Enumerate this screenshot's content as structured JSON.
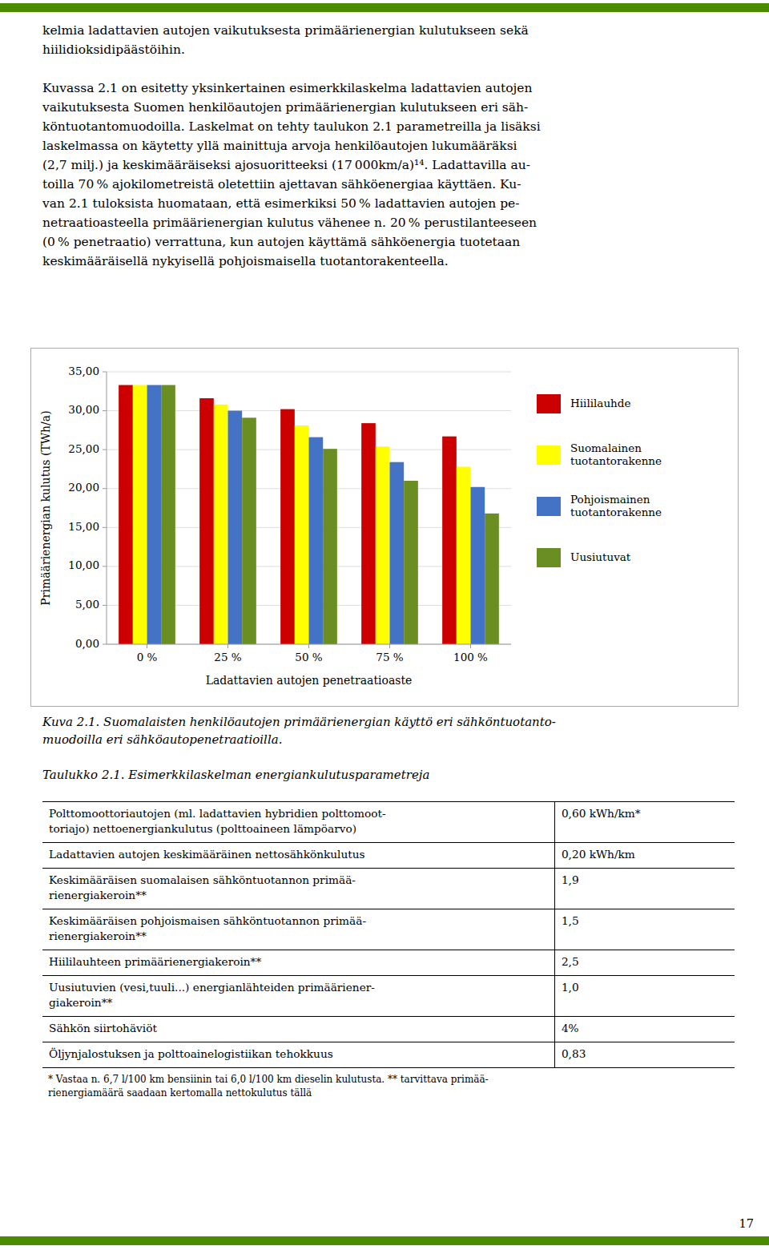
{
  "page": {
    "body_paragraphs": [
      [
        "kelmia ladattavien autojen vaikutuksesta primäärienergian kulutukseen sekä",
        "hiilidioksidipäästöihin."
      ],
      [
        "Kuvassa 2.1 on esitetty yksinkertainen esimerkkilaskelma ladattavien autojen",
        "vaikutuksesta Suomen henkilöautojen primäärienergian kulutukseen eri säh-",
        "köntuotantomuodoilla. Laskelmat on tehty taulukon 2.1 parametreilla ja lisäksi",
        "laskelmassa on käytetty yllä mainittuja arvoja henkilöautojen lukumääräksi",
        "(2,7 milj.) ja keskimääräiseksi ajosuoritteeksi (17 000km/a)¹⁴. Ladattavilla au-",
        "toilla 70 % ajokilometreistä oletettiin ajettavan sähköenergiaa käyttäen. Ku-",
        "van 2.1 tuloksista huomataan, että esimerkiksi 50 % ladattavien autojen pe-",
        "netraatioasteella primäärienergian kulutus vähenee n. 20 % perustilanteeseen",
        "(0 % penetraatio) verrattuna, kun autojen käyttämä sähköenergia tuotetaan",
        "keskimääräisellä nykyisellä pohjoismaisella tuotantorakenteella."
      ]
    ],
    "figure_caption": "Kuva 2.1. Suomalaisten henkilöautojen primäärienergian käyttö eri sähköntuotanto-\nmuodoilla eri sähköautopenetraatioilla.",
    "table_title": "Taulukko 2.1. Esimerkkilaskelman energiankulutusparametreja",
    "table_rows": [
      [
        "Polttomoottoriautojen (ml. ladattavien hybridien polttomoot-\ntoriajo) nettoenergiankulutus (polttoaineen lämpöarvo)",
        "0,60 kWh/km*"
      ],
      [
        "Ladattavien autojen keskimääräinen nettosähkönkulutus",
        "0,20 kWh/km"
      ],
      [
        "Keskimääräisen suomalaisen sähköntuotannon primää-\nrienergiakeroin**",
        "1,9"
      ],
      [
        "Keskimääräisen pohjoismaisen sähköntuotannon primää-\nrienergiakeroin**",
        "1,5"
      ],
      [
        "Hiililauhteen primäärienergiakeroin**",
        "2,5"
      ],
      [
        "Uusiutuvien (vesi,tuuli...) energianlähteiden primääriener-\ngiakeroin**",
        "1,0"
      ],
      [
        "Sähkön siirtohäviöt",
        "4%"
      ],
      [
        "Öljynjalostuksen ja polttoainelogistiikan tehokkuus",
        "0,83"
      ]
    ],
    "table_footnote": "* Vastaa n. 6,7 l/100 km bensiinin tai 6,0 l/100 km dieselin kulutusta. ** tarvittava primää-\nrienergiamäärä saadaan kertomalla nettokulutus tällä",
    "page_number": "17"
  },
  "chart_data": {
    "type": "bar",
    "categories": [
      "0 %",
      "25 %",
      "50 %",
      "75 %",
      "100 %"
    ],
    "series": [
      {
        "name": "Hiililauhde",
        "color": "#CC0000",
        "values": [
          33.3,
          31.6,
          30.2,
          28.4,
          26.7
        ]
      },
      {
        "name": "Suomalainen\ntuotantorakenne",
        "color": "#FFFF00",
        "values": [
          33.3,
          30.8,
          28.1,
          25.4,
          22.8
        ]
      },
      {
        "name": "Pohjoismainen\ntuotantorakenne",
        "color": "#4472C4",
        "values": [
          33.3,
          30.0,
          26.6,
          23.4,
          20.2
        ]
      },
      {
        "name": "Uusiutuvat",
        "color": "#6B8E23",
        "values": [
          33.3,
          29.1,
          25.1,
          21.0,
          16.8
        ]
      }
    ],
    "xlabel": "Ladattavien autojen penetraatioaste",
    "ylabel": "Primäärienergian kulutus (TWh/a)",
    "ylim": [
      0,
      35
    ],
    "yticks": [
      {
        "value": 0,
        "label": "0,00"
      },
      {
        "value": 5,
        "label": "5,00"
      },
      {
        "value": 10,
        "label": "10,00"
      },
      {
        "value": 15,
        "label": "15,00"
      },
      {
        "value": 20,
        "label": "20,00"
      },
      {
        "value": 25,
        "label": "25,00"
      },
      {
        "value": 30,
        "label": "30,00"
      },
      {
        "value": 35,
        "label": "35,00"
      }
    ],
    "grid": true,
    "legend": "right"
  }
}
